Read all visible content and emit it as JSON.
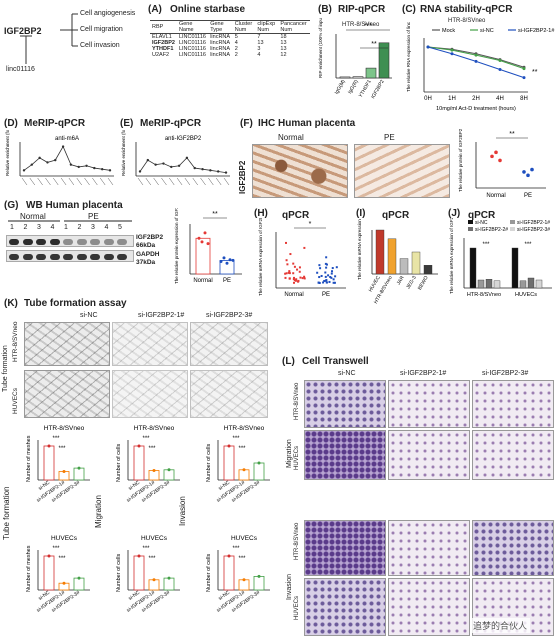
{
  "panel_a_left": {
    "gene": "IGF2BP2",
    "functions": [
      "Cell angiogenesis",
      "Cell migration",
      "Cell invasion"
    ],
    "lnc": "linc01116"
  },
  "panel_a": {
    "letter": "(A)",
    "title": "Online starbase",
    "headers": [
      "RBP",
      "Gene Name",
      "Gene Type",
      "Cluster Num",
      "clipExp Num",
      "Pancancer Num"
    ],
    "rows": [
      [
        "ELAVL1",
        "LINC01116",
        "lincRNA",
        "5",
        "7",
        "18"
      ],
      [
        "IGF2BP2",
        "LINC01116",
        "lincRNA",
        "4",
        "13",
        "13"
      ],
      [
        "YTHDF1",
        "LINC01116",
        "lincRNA",
        "2",
        "3",
        "13"
      ],
      [
        "U2AF2",
        "LINC01116",
        "lincRNA",
        "2",
        "4",
        "12"
      ]
    ]
  },
  "panel_b": {
    "letter": "(B)",
    "title": "RIP-qPCR",
    "subtitle": "HTR-8/SVneo",
    "ylabel": "RIP enrichment (100% of input)",
    "categories": [
      "IgG(M)",
      "IgG(R)",
      "YTHDF1",
      "IGF2BP2"
    ],
    "values": [
      1,
      1.2,
      9,
      32
    ],
    "ylim": [
      0,
      40
    ],
    "sig1": "***",
    "sig2": "**",
    "colors": [
      "#f0f0f0",
      "#f0f0f0",
      "#7dc48a",
      "#3f8f52"
    ]
  },
  "panel_c": {
    "letter": "(C)",
    "title": "RNA stability-qPCR",
    "subtitle": "HTR-8/SVneo",
    "ylabel": "The relative RNA expression of linc01116 (fold change)",
    "xlabel": "10mg/ml Act-D treatment (hours)",
    "x": [
      "0H",
      "1H",
      "2H",
      "4H",
      "8H"
    ],
    "series": [
      {
        "name": "Mock",
        "values": [
          1.0,
          0.95,
          0.85,
          0.72,
          0.55
        ],
        "color": "#555555"
      },
      {
        "name": "si-NC",
        "values": [
          1.0,
          0.93,
          0.82,
          0.7,
          0.52
        ],
        "color": "#43a047"
      },
      {
        "name": "si-IGF2BP2-1#",
        "values": [
          1.0,
          0.85,
          0.68,
          0.5,
          0.32
        ],
        "color": "#1e4fbf"
      }
    ],
    "ylim": [
      0,
      1.2
    ],
    "sig": "**"
  },
  "panel_d": {
    "letter": "(D)",
    "title": "MeRIP-qPCR",
    "inner": "anti-m6A",
    "ylabel": "Relative enrichment (fold change)",
    "values": [
      0.5,
      1.0,
      1.6,
      1.2,
      1.4,
      2.6,
      1.0,
      0.8,
      0.9,
      0.7,
      0.6,
      0.5
    ]
  },
  "panel_e": {
    "letter": "(E)",
    "title": "MeRIP-qPCR",
    "inner": "anti-IGF2BP2",
    "ylabel": "Relative enrichment (fold change)",
    "values": [
      0.4,
      1.4,
      1.0,
      1.1,
      0.8,
      0.9,
      1.6,
      0.7,
      0.6,
      0.5,
      0.4,
      0.3
    ]
  },
  "panel_f": {
    "letter": "(F)",
    "title": "IHC Human placenta",
    "col_normal": "Normal",
    "col_pe": "PE",
    "row": "IGF2BP2",
    "ylabel": "The relative protein of IGF2BP2",
    "groups": [
      "Normal",
      "PE"
    ],
    "normal_vals": [
      0.55,
      0.62,
      0.48
    ],
    "pe_vals": [
      0.28,
      0.22,
      0.32
    ],
    "sig": "**"
  },
  "panel_g": {
    "letter": "(G)",
    "title": "WB  Human placenta",
    "normal_label": "Normal",
    "pe_label": "PE",
    "normal_lanes": [
      "1",
      "2",
      "3",
      "4"
    ],
    "pe_lanes": [
      "1",
      "2",
      "3",
      "4",
      "5"
    ],
    "band1": "IGF2BP2",
    "band1_kda": "66kDa",
    "band2": "GAPDH",
    "band2_kda": "37kDa",
    "ylabel": "The relative protein expression of IGF2BP2",
    "groups": [
      "Normal",
      "PE"
    ],
    "sig": "**",
    "normal_vals": [
      1.0,
      0.9,
      1.15,
      0.85
    ],
    "pe_vals": [
      0.35,
      0.45,
      0.3,
      0.4,
      0.38
    ]
  },
  "panel_h": {
    "letter": "(H)",
    "title": "qPCR",
    "sig": "*",
    "ylabel": "The relative mRNA expression of IGF2BP2 (fold change)",
    "groups": [
      "Normal",
      "PE"
    ]
  },
  "panel_i": {
    "letter": "(I)",
    "title": "qPCR",
    "ylabel": "The relative mRNA expression of IGF2BP2 (fold change)",
    "categories": [
      "HUVEC",
      "HTR-8/SVneo",
      "JAR",
      "JEG-3",
      "BEWO"
    ],
    "values": [
      1.0,
      0.8,
      0.35,
      0.5,
      0.2
    ],
    "ylim": [
      0,
      1.0
    ],
    "colors": [
      "#c0392b",
      "#f0a22e",
      "#bcbcbc",
      "#e8e4a6",
      "#3a3a3a"
    ]
  },
  "panel_j": {
    "letter": "(J)",
    "title": "qPCR",
    "ylabel": "The relative mRNA expression of IGF2BP2 (fold change)",
    "legend": [
      "si-NC",
      "si-IGF2BP2-1#",
      "si-IGF2BP2-2#",
      "si-IGF2BP2-3#"
    ],
    "colors": [
      "#111111",
      "#999999",
      "#6e6e6e",
      "#d6d6d6"
    ],
    "groups": [
      "HTR-8/SVneo",
      "HUVECs"
    ],
    "values": [
      [
        1.0,
        0.2,
        0.22,
        0.18
      ],
      [
        1.0,
        0.18,
        0.25,
        0.2
      ]
    ],
    "sig": "***"
  },
  "panel_k": {
    "letter": "(K)",
    "title": "Tube formation assay",
    "cols": [
      "si-NC",
      "si-IGF2BP2-1#",
      "si-IGF2BP2-3#"
    ],
    "row_main": "Tube formation",
    "rows": [
      "HTR-8/SVneo",
      "HUVECs"
    ]
  },
  "panel_l": {
    "letter": "(L)",
    "title": "Cell Transwell",
    "cols": [
      "si-NC",
      "si-IGF2BP2-1#",
      "si-IGF2BP2-3#"
    ],
    "sections": [
      "Migration",
      "Invasion"
    ],
    "rows": [
      "HTR-8/SVneo",
      "HUVECs"
    ]
  },
  "quant": {
    "side_tube": "Tube formation",
    "side_mig": "Migration",
    "side_inv": "Invasion",
    "top_group": "HTR-8/SVneo",
    "bottom_group": "HUVECs",
    "ylabels": [
      "Number of meshes",
      "Number of cells",
      "Number of cells"
    ],
    "xcats": [
      "si-NC",
      "si-IGF2BP2-1#",
      "si-IGF2BP2-3#"
    ],
    "sig": "***",
    "top_vals": [
      [
        1.0,
        0.25,
        0.35
      ],
      [
        1.0,
        0.28,
        0.3
      ],
      [
        1.0,
        0.3,
        0.5
      ]
    ],
    "bottom_vals": [
      [
        1.0,
        0.2,
        0.35
      ],
      [
        1.0,
        0.3,
        0.35
      ],
      [
        1.0,
        0.3,
        0.4
      ]
    ],
    "colors": [
      "#d32f2f",
      "#f57c00",
      "#43a047"
    ]
  },
  "watermark": "追梦的合伙人"
}
